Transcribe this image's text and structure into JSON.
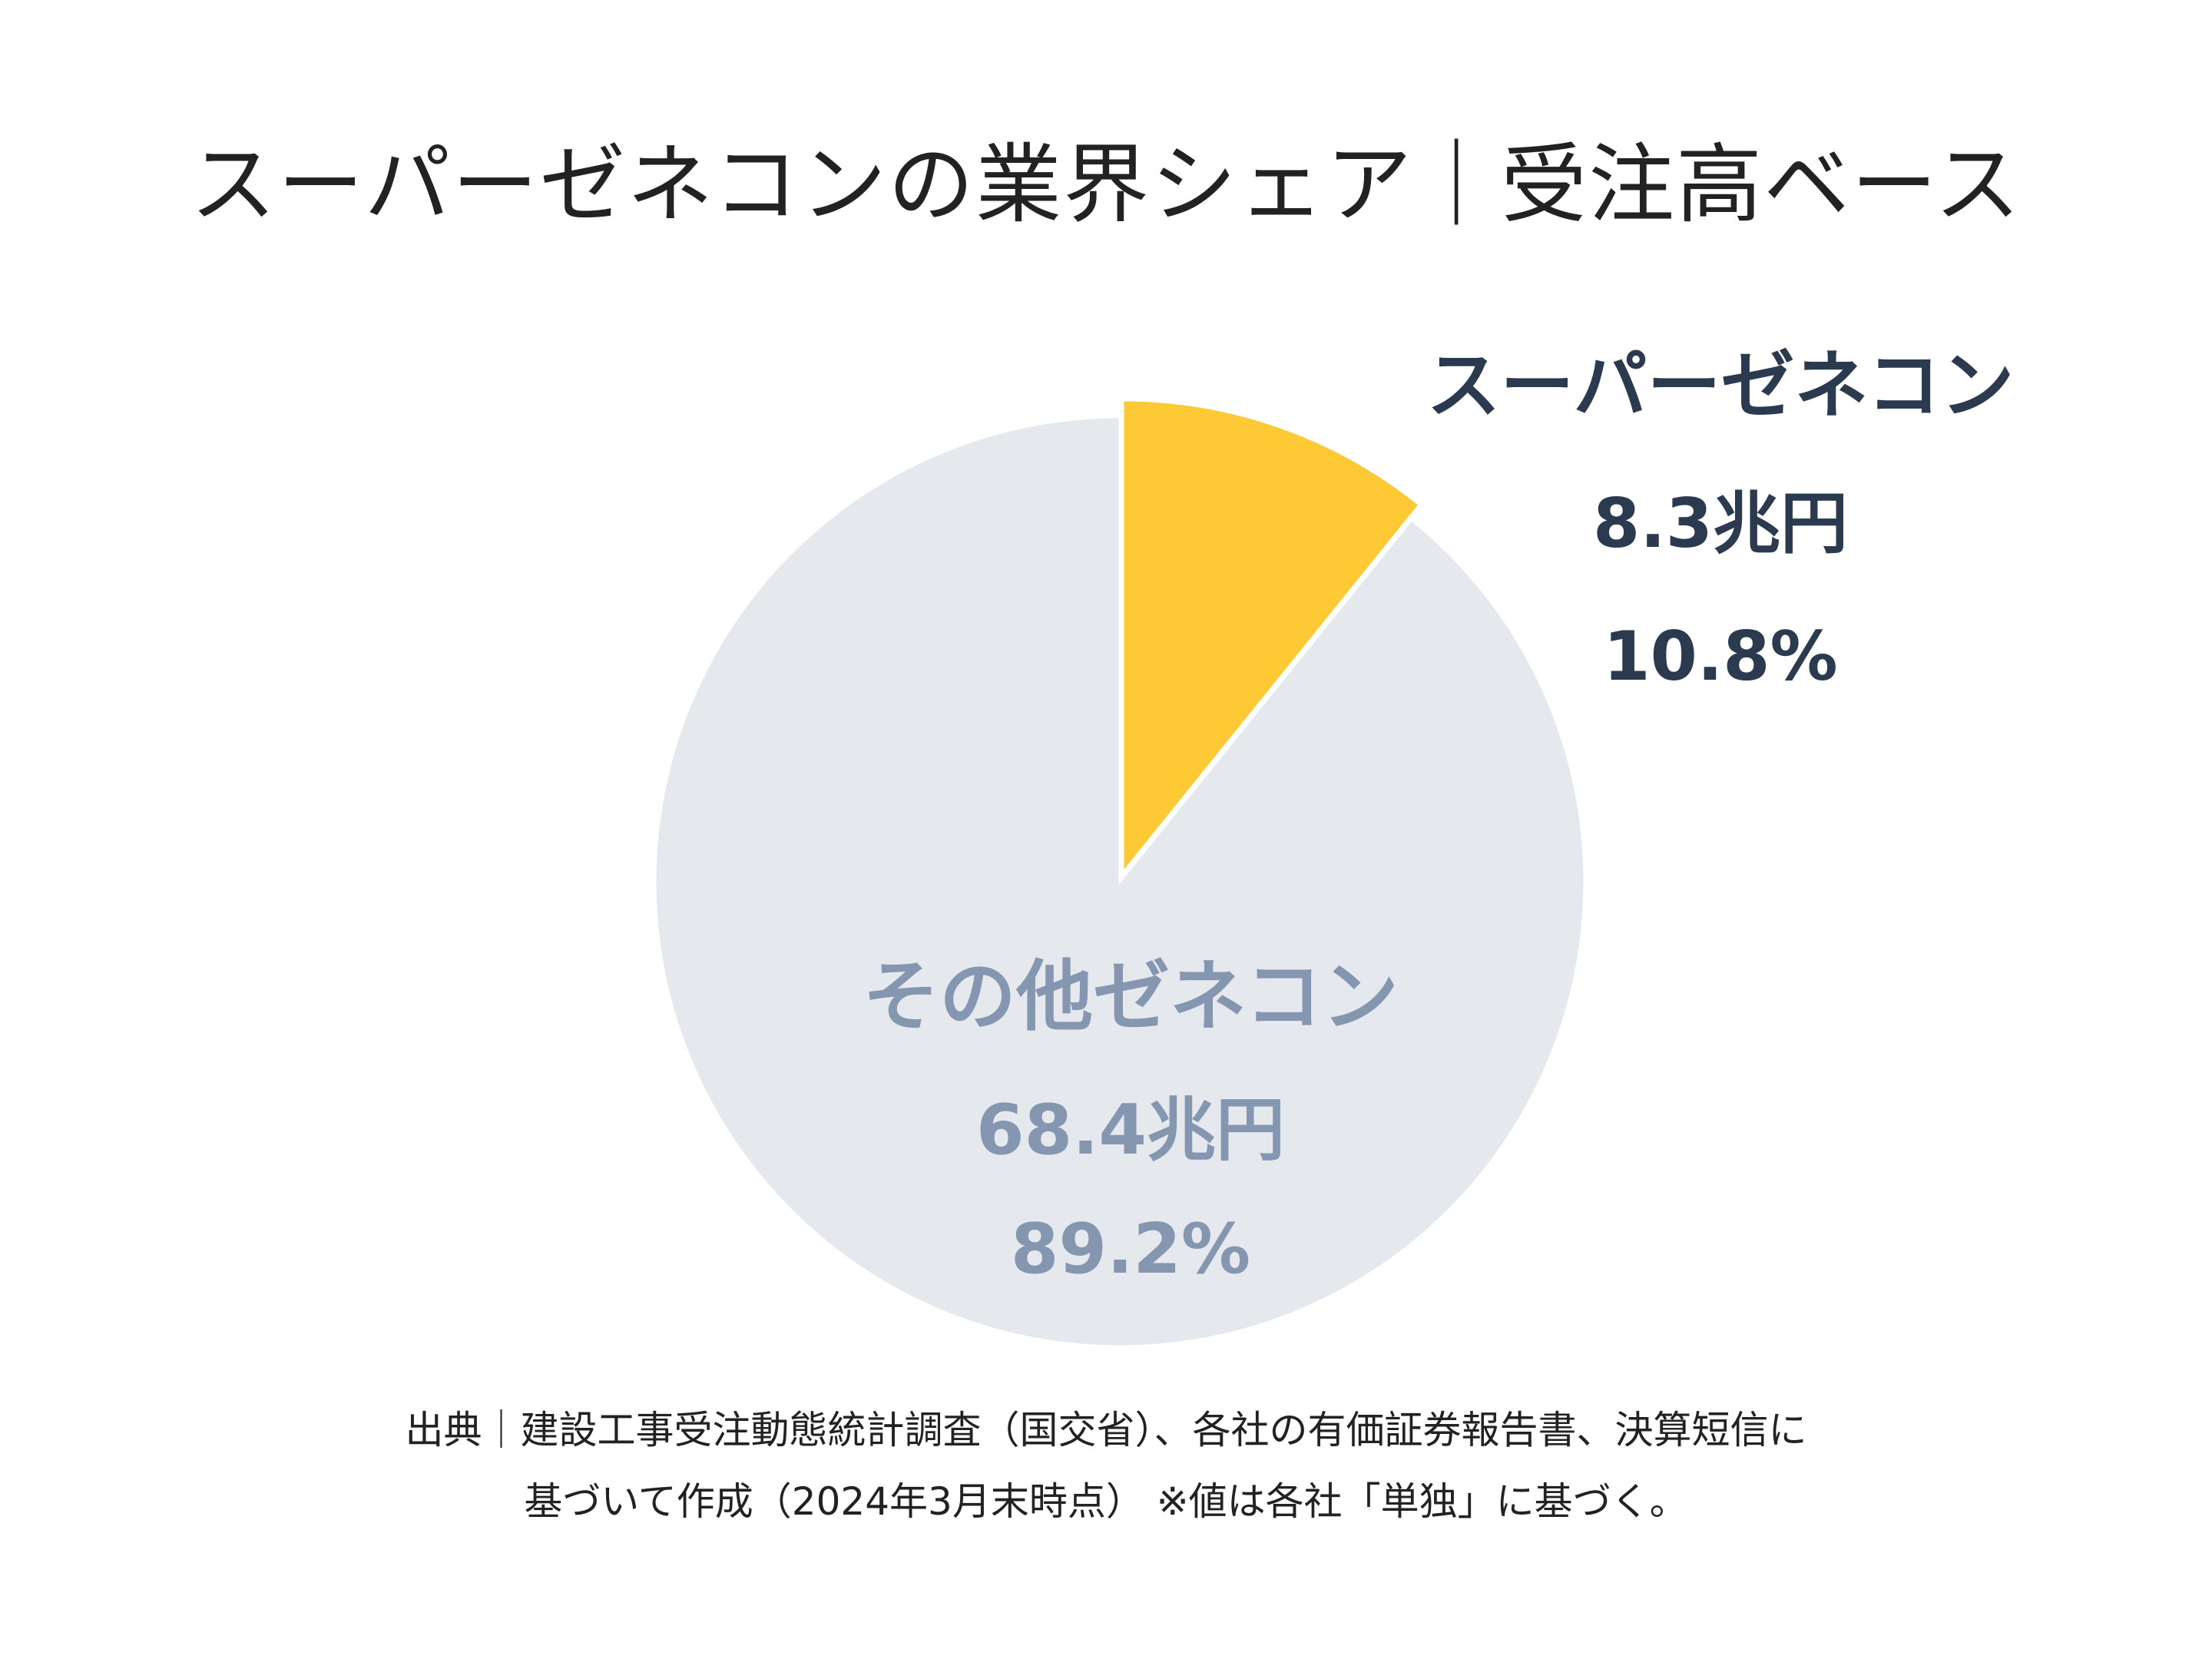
{
  "chart_data": {
    "type": "pie",
    "title": "スーパーゼネコンの業界シェア｜受注高ベース",
    "slices": [
      {
        "name": "スーパーゼネコン",
        "amount_label": "8.3兆円",
        "value": 10.8,
        "percent_label": "10.8%",
        "color": "#fdc934",
        "label_color": "#2b3a4f"
      },
      {
        "name": "その他ゼネコン",
        "amount_label": "68.4兆円",
        "value": 89.2,
        "percent_label": "89.2%",
        "color": "#e5e8ec",
        "label_color": "#8496b0"
      }
    ],
    "source_lines": [
      "出典｜建設工事受注動態統計調査（国交省）、各社の有価証券報告書、決算短信に",
      "基づいて作成（2024年3月末時点） ※値は各社「単独」に基づく。"
    ]
  }
}
